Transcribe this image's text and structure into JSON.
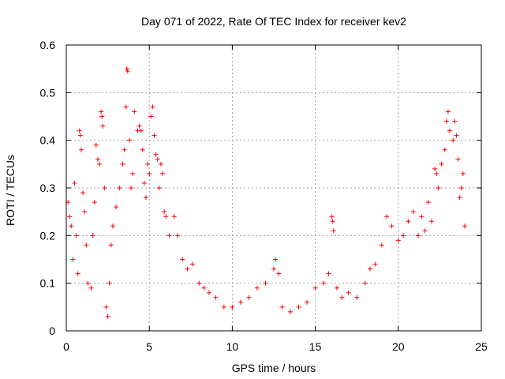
{
  "chart_data": {
    "type": "scatter",
    "title": "Day 071 of 2022, Rate Of TEC Index for receiver kev2",
    "xlabel": "GPS time / hours",
    "ylabel": "ROTI / TECUs",
    "xlim": [
      0,
      25
    ],
    "ylim": [
      0,
      0.6
    ],
    "xticks": [
      0,
      5,
      10,
      15,
      20,
      25
    ],
    "xtick_labels": [
      "0",
      "5",
      "10",
      "15",
      "20",
      "25"
    ],
    "yticks": [
      0,
      0.1,
      0.2,
      0.3,
      0.4,
      0.5,
      0.6
    ],
    "ytick_labels": [
      "0",
      "0.1",
      "0.2",
      "0.3",
      "0.4",
      "0.5",
      "0.6"
    ],
    "grid": true,
    "marker": "plus",
    "color": "#ff0000",
    "series": [
      {
        "name": "ROTI",
        "points": [
          [
            0.1,
            0.27
          ],
          [
            0.2,
            0.24
          ],
          [
            0.3,
            0.22
          ],
          [
            0.4,
            0.15
          ],
          [
            0.5,
            0.31
          ],
          [
            0.6,
            0.2
          ],
          [
            0.7,
            0.12
          ],
          [
            0.8,
            0.42
          ],
          [
            0.85,
            0.41
          ],
          [
            0.9,
            0.38
          ],
          [
            1.0,
            0.29
          ],
          [
            1.1,
            0.25
          ],
          [
            1.2,
            0.18
          ],
          [
            1.3,
            0.1
          ],
          [
            1.5,
            0.09
          ],
          [
            1.6,
            0.2
          ],
          [
            1.7,
            0.27
          ],
          [
            1.8,
            0.39
          ],
          [
            1.9,
            0.36
          ],
          [
            2.0,
            0.35
          ],
          [
            2.1,
            0.46
          ],
          [
            2.15,
            0.45
          ],
          [
            2.2,
            0.43
          ],
          [
            2.3,
            0.3
          ],
          [
            2.4,
            0.05
          ],
          [
            2.5,
            0.03
          ],
          [
            2.6,
            0.1
          ],
          [
            2.7,
            0.18
          ],
          [
            2.8,
            0.22
          ],
          [
            3.0,
            0.26
          ],
          [
            3.2,
            0.3
          ],
          [
            3.4,
            0.35
          ],
          [
            3.5,
            0.38
          ],
          [
            3.6,
            0.47
          ],
          [
            3.65,
            0.55
          ],
          [
            3.7,
            0.545
          ],
          [
            3.8,
            0.4
          ],
          [
            3.9,
            0.3
          ],
          [
            4.0,
            0.33
          ],
          [
            4.1,
            0.46
          ],
          [
            4.3,
            0.42
          ],
          [
            4.4,
            0.43
          ],
          [
            4.5,
            0.42
          ],
          [
            4.6,
            0.38
          ],
          [
            4.7,
            0.31
          ],
          [
            4.8,
            0.28
          ],
          [
            4.9,
            0.35
          ],
          [
            5.0,
            0.33
          ],
          [
            5.1,
            0.45
          ],
          [
            5.2,
            0.47
          ],
          [
            5.3,
            0.41
          ],
          [
            5.4,
            0.37
          ],
          [
            5.5,
            0.36
          ],
          [
            5.6,
            0.3
          ],
          [
            5.7,
            0.35
          ],
          [
            5.8,
            0.33
          ],
          [
            5.9,
            0.25
          ],
          [
            6.0,
            0.24
          ],
          [
            6.2,
            0.2
          ],
          [
            6.5,
            0.24
          ],
          [
            6.7,
            0.2
          ],
          [
            7.0,
            0.15
          ],
          [
            7.3,
            0.13
          ],
          [
            7.6,
            0.14
          ],
          [
            8.0,
            0.1
          ],
          [
            8.3,
            0.09
          ],
          [
            8.6,
            0.08
          ],
          [
            9.0,
            0.07
          ],
          [
            9.5,
            0.05
          ],
          [
            10.0,
            0.05
          ],
          [
            10.5,
            0.06
          ],
          [
            11.0,
            0.07
          ],
          [
            11.5,
            0.09
          ],
          [
            12.0,
            0.1
          ],
          [
            12.5,
            0.13
          ],
          [
            12.6,
            0.15
          ],
          [
            12.8,
            0.12
          ],
          [
            13.0,
            0.05
          ],
          [
            13.5,
            0.04
          ],
          [
            14.0,
            0.05
          ],
          [
            14.5,
            0.06
          ],
          [
            15.0,
            0.09
          ],
          [
            15.5,
            0.1
          ],
          [
            15.8,
            0.12
          ],
          [
            16.0,
            0.24
          ],
          [
            16.05,
            0.23
          ],
          [
            16.1,
            0.21
          ],
          [
            16.3,
            0.09
          ],
          [
            16.6,
            0.07
          ],
          [
            17.0,
            0.08
          ],
          [
            17.5,
            0.07
          ],
          [
            18.0,
            0.1
          ],
          [
            18.3,
            0.13
          ],
          [
            18.6,
            0.14
          ],
          [
            19.0,
            0.18
          ],
          [
            19.3,
            0.24
          ],
          [
            19.6,
            0.22
          ],
          [
            20.0,
            0.19
          ],
          [
            20.3,
            0.2
          ],
          [
            20.6,
            0.23
          ],
          [
            20.9,
            0.25
          ],
          [
            21.2,
            0.2
          ],
          [
            21.4,
            0.24
          ],
          [
            21.6,
            0.21
          ],
          [
            21.8,
            0.27
          ],
          [
            22.0,
            0.23
          ],
          [
            22.2,
            0.34
          ],
          [
            22.3,
            0.33
          ],
          [
            22.4,
            0.3
          ],
          [
            22.6,
            0.35
          ],
          [
            22.8,
            0.38
          ],
          [
            22.9,
            0.44
          ],
          [
            23.0,
            0.46
          ],
          [
            23.1,
            0.42
          ],
          [
            23.3,
            0.4
          ],
          [
            23.4,
            0.44
          ],
          [
            23.5,
            0.41
          ],
          [
            23.6,
            0.36
          ],
          [
            23.7,
            0.28
          ],
          [
            23.8,
            0.3
          ],
          [
            23.9,
            0.33
          ],
          [
            24.0,
            0.22
          ]
        ]
      }
    ]
  }
}
